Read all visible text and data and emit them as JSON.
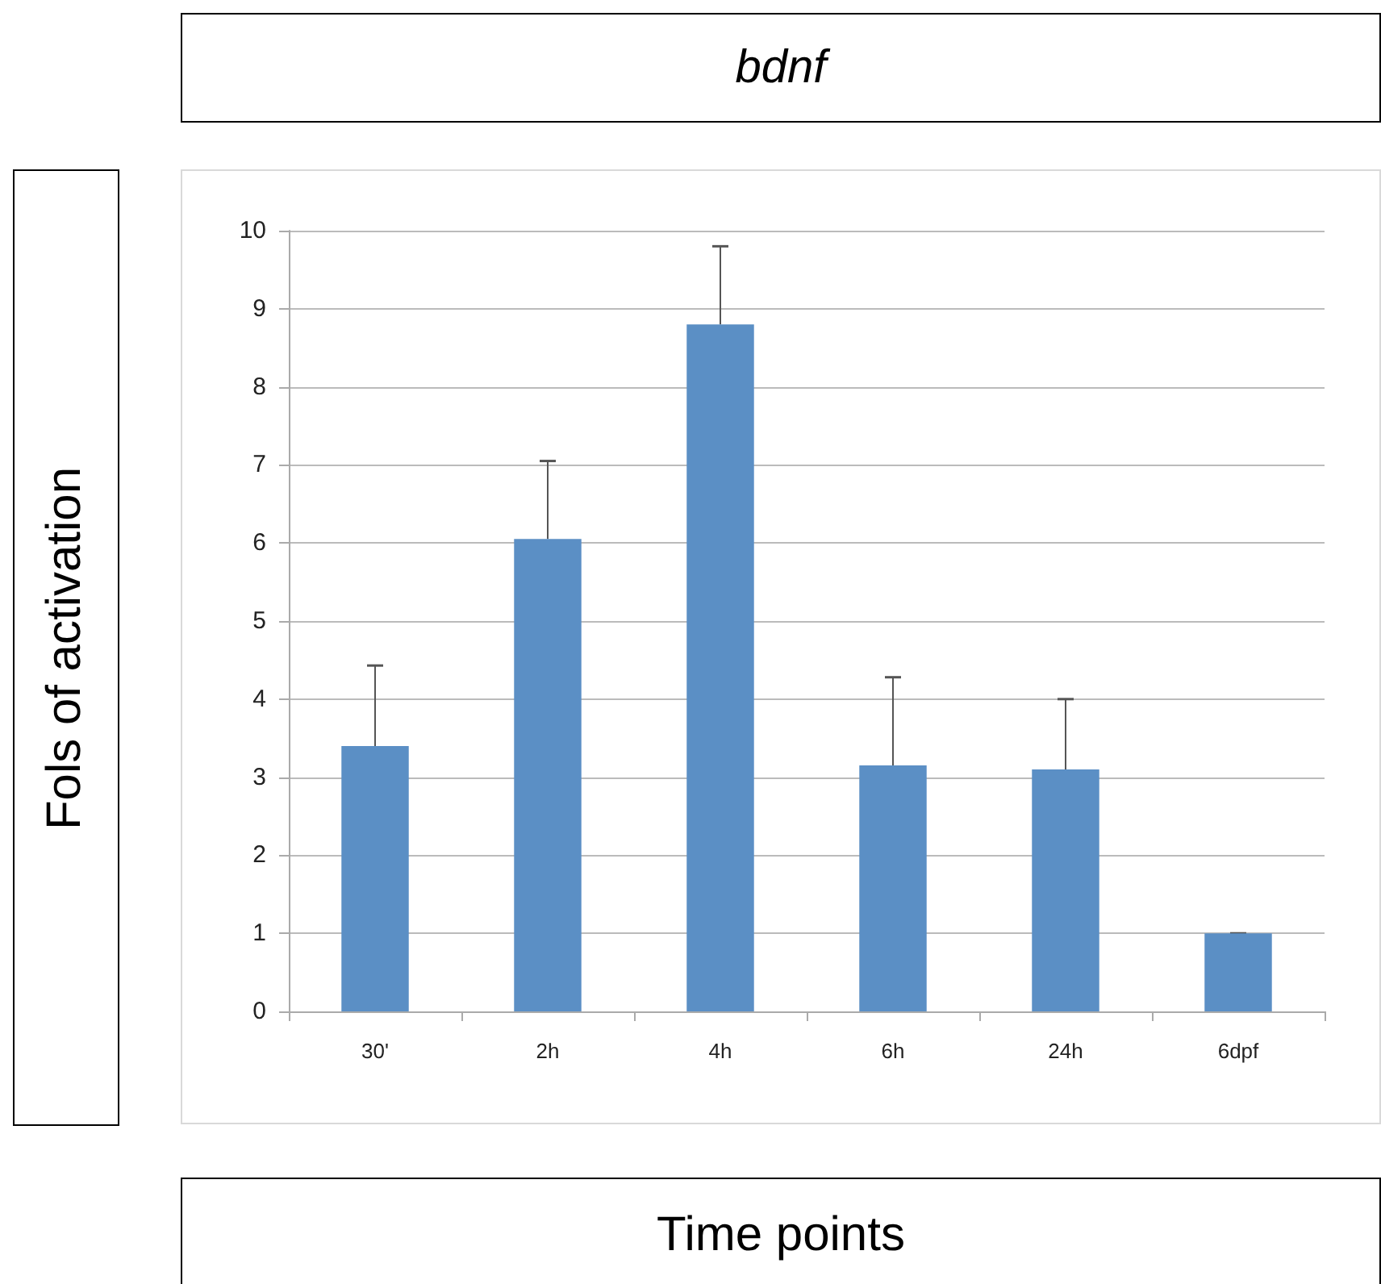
{
  "chart_data": {
    "type": "bar",
    "title": "bdnf",
    "xlabel": "Time points",
    "ylabel": "Fols of activation",
    "categories": [
      "30'",
      "2h",
      "4h",
      "6h",
      "24h",
      "6dpf"
    ],
    "values": [
      3.4,
      6.05,
      8.8,
      3.15,
      3.1,
      1.0
    ],
    "errors": [
      [
        3.4,
        4.43
      ],
      [
        6.05,
        7.05
      ],
      [
        8.8,
        9.8
      ],
      [
        3.15,
        4.28
      ],
      [
        3.1,
        4.0
      ],
      [
        1.0,
        1.0
      ]
    ],
    "color": "#5b8fc5",
    "ylim": [
      0,
      10
    ],
    "yticks": [
      0,
      1,
      2,
      3,
      4,
      5,
      6,
      7,
      8,
      9,
      10
    ],
    "grid": "y"
  }
}
